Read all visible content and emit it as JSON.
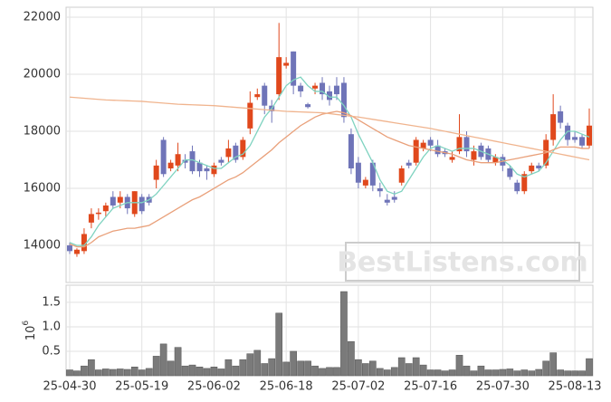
{
  "chart_data": [
    {
      "type": "candlestick",
      "up_color": "#e0481c",
      "down_color": "#6f74b8",
      "open": [
        14000,
        13700,
        13800,
        14800,
        15100,
        15200,
        15700,
        15500,
        15700,
        15100,
        15700,
        15700,
        16300,
        17700,
        16700,
        16800,
        17000,
        17300,
        16900,
        16700,
        16500,
        17000,
        17100,
        17500,
        17100,
        18100,
        19200,
        19600,
        18900,
        19300,
        20300,
        20800,
        19600,
        18950,
        19500,
        19700,
        19400,
        19600,
        19700,
        17900,
        16900,
        16100,
        16900,
        16000,
        15600,
        15700,
        16200,
        16900,
        16900,
        17400,
        17700,
        17500,
        17300,
        17000,
        17300,
        17800,
        17000,
        17500,
        17400,
        16900,
        17100,
        16700,
        16200,
        15900,
        16600,
        16800,
        16800,
        17700,
        18700,
        18200,
        17800,
        17800,
        17500
      ],
      "high": [
        14100,
        13900,
        14600,
        15300,
        15300,
        15500,
        15900,
        15900,
        15800,
        15900,
        15800,
        15800,
        17000,
        17800,
        17000,
        17600,
        17200,
        17500,
        17000,
        16800,
        16900,
        17100,
        17700,
        17600,
        17800,
        19400,
        19500,
        19700,
        19100,
        21800,
        20600,
        20800,
        19700,
        19000,
        19700,
        19900,
        19600,
        19900,
        19900,
        18100,
        17100,
        16400,
        17000,
        16200,
        15800,
        15900,
        16800,
        17000,
        17800,
        17700,
        17800,
        17700,
        17400,
        17300,
        18600,
        18000,
        17500,
        17600,
        17500,
        17200,
        17200,
        16800,
        16300,
        16600,
        16900,
        16900,
        17900,
        19300,
        18900,
        18300,
        18000,
        17900,
        18800
      ],
      "low": [
        13700,
        13600,
        13700,
        14600,
        14900,
        15000,
        15300,
        15300,
        15100,
        15000,
        15100,
        15400,
        16000,
        16400,
        16600,
        16600,
        16700,
        16500,
        16400,
        16300,
        16400,
        16800,
        16900,
        16900,
        17000,
        17900,
        19100,
        18600,
        18300,
        19100,
        20200,
        19300,
        19200,
        18800,
        19300,
        19100,
        18900,
        19100,
        18300,
        16500,
        16000,
        16000,
        15900,
        15700,
        15400,
        15500,
        16100,
        16700,
        16800,
        17300,
        17300,
        17100,
        17100,
        16900,
        17200,
        17100,
        16800,
        17000,
        16900,
        16800,
        16600,
        16300,
        15800,
        15800,
        16500,
        16600,
        16700,
        17500,
        18100,
        17500,
        17600,
        17400,
        17400
      ],
      "close": [
        13800,
        13850,
        14400,
        15100,
        15150,
        15400,
        15400,
        15700,
        15300,
        15900,
        15200,
        15500,
        16800,
        16500,
        16900,
        17200,
        16900,
        16600,
        16600,
        16600,
        16800,
        16900,
        17400,
        17000,
        17700,
        19000,
        19300,
        18900,
        18700,
        20600,
        20400,
        19600,
        19400,
        18850,
        19600,
        19300,
        19100,
        19300,
        18500,
        16700,
        16200,
        16300,
        16100,
        15900,
        15500,
        15600,
        16700,
        16800,
        17700,
        17600,
        17500,
        17200,
        17200,
        17100,
        17800,
        17300,
        17300,
        17100,
        17000,
        17100,
        16800,
        16400,
        15900,
        16500,
        16800,
        16700,
        17700,
        18600,
        18300,
        17700,
        17700,
        17500,
        18200
      ],
      "series": [
        {
          "color": "#7fd3c0",
          "values": [
            14100,
            14000,
            14000,
            14300,
            14700,
            15000,
            15300,
            15400,
            15500,
            15500,
            15500,
            15600,
            15800,
            16100,
            16400,
            16700,
            17000,
            17000,
            16900,
            16800,
            16700,
            16700,
            16900,
            17100,
            17200,
            17500,
            18000,
            18500,
            18800,
            19200,
            19600,
            19800,
            19900,
            19600,
            19400,
            19400,
            19200,
            19200,
            18900,
            18500,
            17900,
            17400,
            16900,
            16300,
            15900,
            15800,
            15900,
            16300,
            16700,
            17100,
            17400,
            17500,
            17400,
            17300,
            17400,
            17400,
            17400,
            17300,
            17200,
            17100,
            17000,
            16800,
            16500,
            16400,
            16500,
            16600,
            16900,
            17300,
            17700,
            18000,
            18000,
            17900,
            17800
          ]
        },
        {
          "color": "#e9a07a",
          "values": [
            14050,
            13950,
            13950,
            14100,
            14300,
            14400,
            14500,
            14550,
            14600,
            14600,
            14650,
            14700,
            14850,
            15000,
            15150,
            15300,
            15450,
            15600,
            15700,
            15850,
            16000,
            16150,
            16300,
            16400,
            16550,
            16750,
            16950,
            17150,
            17350,
            17600,
            17800,
            18000,
            18200,
            18350,
            18500,
            18600,
            18650,
            18700,
            18650,
            18550,
            18400,
            18250,
            18100,
            17950,
            17800,
            17700,
            17600,
            17500,
            17450,
            17400,
            17350,
            17300,
            17250,
            17200,
            17100,
            17000,
            16950,
            16900,
            16900,
            16900,
            16950,
            17000,
            17050,
            17100,
            17150,
            17200,
            17250,
            17350,
            17450,
            17450,
            17450,
            17400,
            17400
          ]
        },
        {
          "color": "#f0b48e",
          "values": [
            19200,
            19180,
            19160,
            19140,
            19120,
            19100,
            19090,
            19080,
            19070,
            19060,
            19050,
            19030,
            19010,
            18990,
            18970,
            18950,
            18940,
            18930,
            18920,
            18910,
            18900,
            18880,
            18860,
            18840,
            18820,
            18800,
            18780,
            18760,
            18740,
            18720,
            18700,
            18690,
            18680,
            18670,
            18660,
            18650,
            18620,
            18590,
            18560,
            18530,
            18500,
            18460,
            18420,
            18380,
            18340,
            18300,
            18260,
            18220,
            18180,
            18140,
            18100,
            18050,
            18000,
            17950,
            17900,
            17850,
            17800,
            17750,
            17700,
            17650,
            17600,
            17550,
            17500,
            17450,
            17400,
            17350,
            17300,
            17250,
            17200,
            17150,
            17100,
            17050,
            17000
          ]
        }
      ],
      "ylim": [
        12700,
        22350
      ],
      "yticks": [
        14000,
        16000,
        18000,
        20000,
        22000
      ],
      "grid": true,
      "watermark": "BestListens.com"
    },
    {
      "type": "bar",
      "color": "#7a7a7a",
      "categories": [
        "25-04-30",
        null,
        null,
        null,
        null,
        null,
        null,
        null,
        null,
        null,
        "25-05-19",
        null,
        null,
        null,
        null,
        null,
        null,
        null,
        null,
        null,
        "25-06-02",
        null,
        null,
        null,
        null,
        null,
        null,
        null,
        null,
        null,
        "25-06-18",
        null,
        null,
        null,
        null,
        null,
        null,
        null,
        null,
        null,
        "25-07-02",
        null,
        null,
        null,
        null,
        null,
        null,
        null,
        null,
        null,
        "25-07-16",
        null,
        null,
        null,
        null,
        null,
        null,
        null,
        null,
        null,
        "25-07-30",
        null,
        null,
        null,
        null,
        null,
        null,
        null,
        null,
        null,
        "25-08-13",
        null,
        null
      ],
      "values": [
        0.12,
        0.1,
        0.2,
        0.33,
        0.12,
        0.14,
        0.13,
        0.14,
        0.13,
        0.18,
        0.12,
        0.15,
        0.4,
        0.65,
        0.3,
        0.58,
        0.2,
        0.22,
        0.18,
        0.15,
        0.18,
        0.14,
        0.33,
        0.2,
        0.33,
        0.45,
        0.52,
        0.25,
        0.35,
        1.28,
        0.28,
        0.5,
        0.3,
        0.3,
        0.2,
        0.15,
        0.17,
        0.17,
        1.72,
        0.7,
        0.33,
        0.25,
        0.3,
        0.15,
        0.12,
        0.17,
        0.37,
        0.25,
        0.37,
        0.22,
        0.12,
        0.12,
        0.1,
        0.12,
        0.42,
        0.2,
        0.1,
        0.2,
        0.12,
        0.12,
        0.13,
        0.14,
        0.1,
        0.12,
        0.1,
        0.13,
        0.3,
        0.47,
        0.12,
        0.1,
        0.1,
        0.1,
        0.35
      ],
      "ylim": [
        0,
        1.85
      ],
      "yticks": [
        0.5,
        {
          "value": 1,
          "label": "1.0"
        },
        1.5
      ],
      "grid": true,
      "ylabel_base": "10",
      "ylabel_exponent": "6"
    }
  ]
}
